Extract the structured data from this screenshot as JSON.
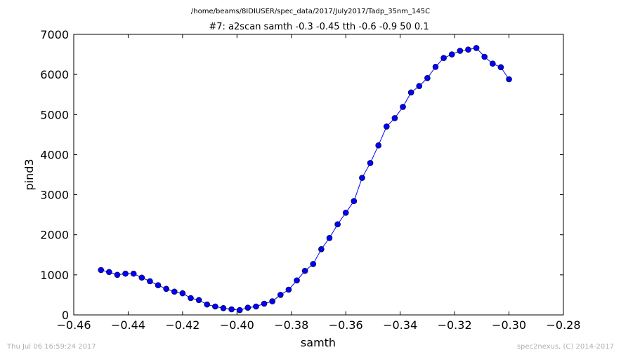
{
  "chart_data": {
    "type": "line",
    "suptitle": "/home/beams/8IDIUSER/spec_data/2017/July2017/Tadp_35nm_145C",
    "title": "#7: a2scan  samth -0.3 -0.45  tth -0.6 -0.9  50 0.1",
    "xlabel": "samth",
    "ylabel": "pind3",
    "xlim": [
      -0.46,
      -0.28
    ],
    "ylim": [
      0,
      7000
    ],
    "xticks": [
      "−0.46",
      "−0.44",
      "−0.42",
      "−0.40",
      "−0.38",
      "−0.36",
      "−0.34",
      "−0.32",
      "−0.30",
      "−0.28"
    ],
    "xtick_values": [
      -0.46,
      -0.44,
      -0.42,
      -0.4,
      -0.38,
      -0.36,
      -0.34,
      -0.32,
      -0.3,
      -0.28
    ],
    "yticks": [
      "0",
      "1000",
      "2000",
      "3000",
      "4000",
      "5000",
      "6000",
      "7000"
    ],
    "ytick_values": [
      0,
      1000,
      2000,
      3000,
      4000,
      5000,
      6000,
      7000
    ],
    "grid": false,
    "line_color": "#0000ff",
    "marker": "circle",
    "series": [
      {
        "x": [
          -0.45,
          -0.447,
          -0.444,
          -0.441,
          -0.438,
          -0.435,
          -0.432,
          -0.429,
          -0.426,
          -0.423,
          -0.42,
          -0.417,
          -0.414,
          -0.411,
          -0.408,
          -0.405,
          -0.402,
          -0.399,
          -0.396,
          -0.393,
          -0.39,
          -0.387,
          -0.384,
          -0.381,
          -0.378,
          -0.375,
          -0.372,
          -0.369,
          -0.366,
          -0.363,
          -0.36,
          -0.357,
          -0.354,
          -0.351,
          -0.348,
          -0.345,
          -0.342,
          -0.339,
          -0.336,
          -0.333,
          -0.33,
          -0.327,
          -0.324,
          -0.321,
          -0.318,
          -0.315,
          -0.312,
          -0.309,
          -0.306,
          -0.303,
          -0.3
        ],
        "values": [
          1120,
          1070,
          1000,
          1030,
          1030,
          930,
          840,
          740,
          650,
          580,
          540,
          420,
          370,
          260,
          210,
          170,
          140,
          120,
          180,
          210,
          280,
          340,
          500,
          630,
          860,
          1100,
          1270,
          1640,
          1920,
          2260,
          2550,
          2840,
          3420,
          3790,
          4230,
          4700,
          4910,
          5190,
          5550,
          5710,
          5910,
          6190,
          6410,
          6500,
          6590,
          6620,
          6660,
          6440,
          6270,
          6180,
          5880
        ]
      }
    ]
  },
  "footer": {
    "timestamp": "Thu Jul 06 16:59:24 2017",
    "credit": "spec2nexus, (C) 2014-2017"
  }
}
